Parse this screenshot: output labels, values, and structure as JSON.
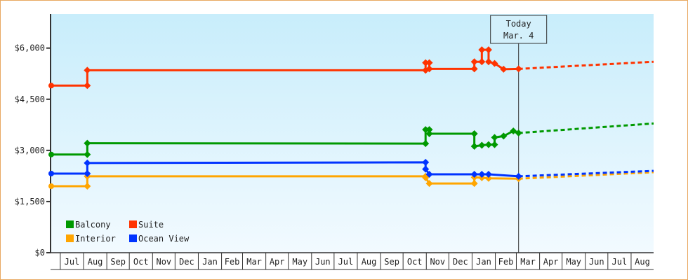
{
  "chart_data": {
    "type": "line",
    "title": "",
    "xlabel": "",
    "ylabel": "",
    "x_range": [
      "2013-06-18",
      "2015-08-31"
    ],
    "ylim": [
      0,
      7000
    ],
    "y_ticks": [
      0,
      1500,
      3000,
      4500,
      6000
    ],
    "y_tick_labels": [
      "$0",
      "$1,500",
      "$3,000",
      "$4,500",
      "$6,000"
    ],
    "x_tick_labels": [
      "Jul",
      "Aug",
      "Sep",
      "Oct",
      "Nov",
      "Dec",
      "Jan",
      "Feb",
      "Mar",
      "Apr",
      "May",
      "Jun",
      "Jul",
      "Aug",
      "Sep",
      "Oct",
      "Nov",
      "Dec",
      "Jan",
      "Feb",
      "Mar",
      "Apr",
      "May",
      "Jun",
      "Jul",
      "Aug"
    ],
    "grid": false,
    "legend_position": "bottom-left",
    "today_marker": {
      "date": "2015-03-04",
      "line1": "Today",
      "line2": "Mar. 4"
    },
    "series": [
      {
        "name": "Balcony",
        "color": "#009900",
        "points": [
          [
            "2013-06-18",
            2880
          ],
          [
            "2013-08-06",
            2880
          ],
          [
            "2013-08-06",
            3210
          ],
          [
            "2014-10-31",
            3200
          ],
          [
            "2014-10-31",
            3610
          ],
          [
            "2014-11-05",
            3610
          ],
          [
            "2014-11-05",
            3490
          ],
          [
            "2015-01-04",
            3490
          ],
          [
            "2015-01-04",
            3120
          ],
          [
            "2015-01-14",
            3150
          ],
          [
            "2015-01-23",
            3170
          ],
          [
            "2015-01-31",
            3170
          ],
          [
            "2015-01-31",
            3380
          ],
          [
            "2015-02-12",
            3420
          ],
          [
            "2015-02-25",
            3570
          ],
          [
            "2015-03-04",
            3510
          ]
        ],
        "forecast": [
          [
            "2015-03-04",
            3510
          ],
          [
            "2015-08-31",
            3790
          ]
        ]
      },
      {
        "name": "Suite",
        "color": "#ff3300",
        "points": [
          [
            "2013-06-18",
            4900
          ],
          [
            "2013-08-06",
            4900
          ],
          [
            "2013-08-06",
            5350
          ],
          [
            "2014-10-31",
            5350
          ],
          [
            "2014-10-31",
            5570
          ],
          [
            "2014-11-05",
            5570
          ],
          [
            "2014-11-05",
            5390
          ],
          [
            "2015-01-04",
            5390
          ],
          [
            "2015-01-04",
            5600
          ],
          [
            "2015-01-14",
            5600
          ],
          [
            "2015-01-14",
            5950
          ],
          [
            "2015-01-23",
            5950
          ],
          [
            "2015-01-23",
            5600
          ],
          [
            "2015-01-31",
            5550
          ],
          [
            "2015-02-12",
            5380
          ],
          [
            "2015-03-04",
            5390
          ]
        ],
        "forecast": [
          [
            "2015-03-04",
            5390
          ],
          [
            "2015-08-31",
            5600
          ]
        ]
      },
      {
        "name": "Interior",
        "color": "#ffa500",
        "points": [
          [
            "2013-06-18",
            1950
          ],
          [
            "2013-08-06",
            1950
          ],
          [
            "2013-08-06",
            2240
          ],
          [
            "2014-10-31",
            2240
          ],
          [
            "2014-10-31",
            2200
          ],
          [
            "2014-11-05",
            2030
          ],
          [
            "2015-01-04",
            2030
          ],
          [
            "2015-01-04",
            2210
          ],
          [
            "2015-01-14",
            2200
          ],
          [
            "2015-01-23",
            2180
          ],
          [
            "2015-03-04",
            2170
          ]
        ],
        "forecast": [
          [
            "2015-03-04",
            2170
          ],
          [
            "2015-08-31",
            2360
          ]
        ]
      },
      {
        "name": "Ocean View",
        "color": "#0033ff",
        "points": [
          [
            "2013-06-18",
            2320
          ],
          [
            "2013-08-06",
            2320
          ],
          [
            "2013-08-06",
            2630
          ],
          [
            "2014-10-31",
            2650
          ],
          [
            "2014-10-31",
            2450
          ],
          [
            "2014-11-05",
            2300
          ],
          [
            "2015-01-04",
            2300
          ],
          [
            "2015-01-14",
            2300
          ],
          [
            "2015-01-23",
            2300
          ],
          [
            "2015-03-04",
            2240
          ]
        ],
        "forecast": [
          [
            "2015-03-04",
            2240
          ],
          [
            "2015-08-31",
            2400
          ]
        ]
      }
    ]
  }
}
